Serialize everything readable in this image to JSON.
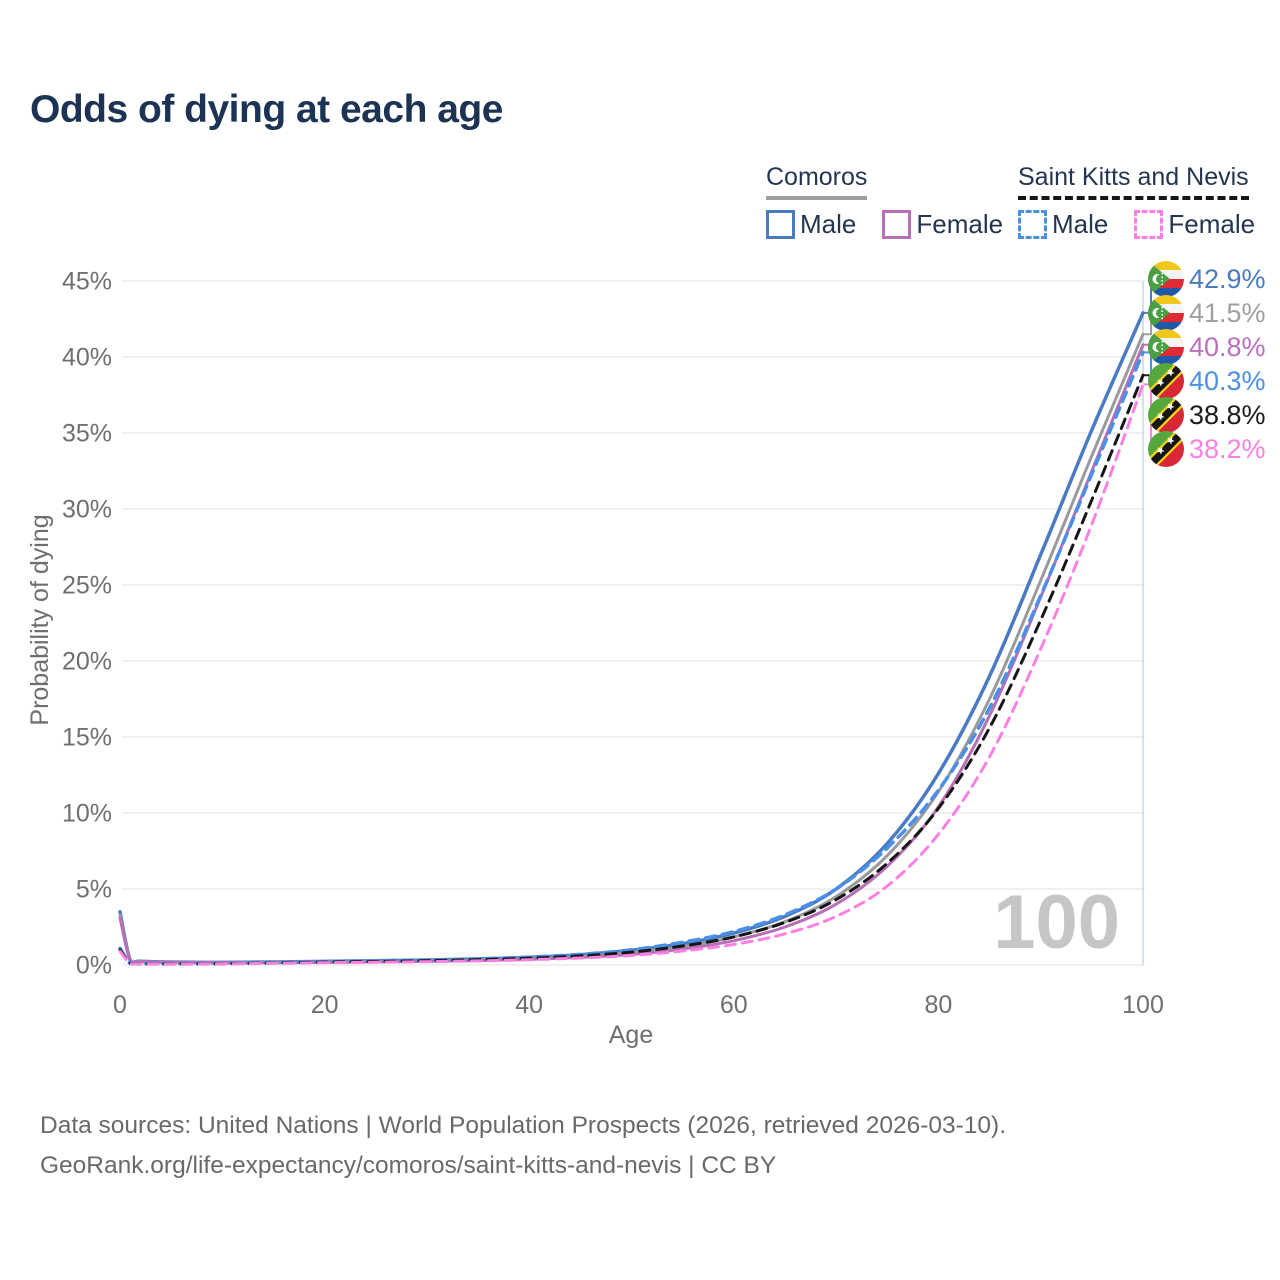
{
  "title": "Odds of dying at each age",
  "legend": {
    "groups": [
      {
        "name": "Comoros",
        "underline_color": "#9e9e9e",
        "line_style": "solid",
        "items": [
          {
            "label": "Male",
            "color": "#4a7ac2",
            "dashed": false
          },
          {
            "label": "Female",
            "color": "#b76fb5",
            "dashed": false
          }
        ]
      },
      {
        "name": "Saint Kitts and Nevis",
        "underline_color": "#161616",
        "line_style": "dashed",
        "items": [
          {
            "label": "Male",
            "color": "#4a90e8",
            "dashed": true
          },
          {
            "label": "Female",
            "color": "#fb80e2",
            "dashed": true
          }
        ]
      }
    ]
  },
  "chart_data": {
    "type": "line",
    "title": "Odds of dying at each age",
    "xlabel": "Age",
    "ylabel": "Probability of dying",
    "xlim": [
      0,
      100
    ],
    "ylim": [
      0,
      45
    ],
    "x_ticks": [
      0,
      20,
      40,
      60,
      80,
      100
    ],
    "y_ticks_percent": [
      0,
      5,
      10,
      15,
      20,
      25,
      30,
      35,
      40,
      45
    ],
    "grid": true,
    "legend_position": "top-right",
    "hover_age_indicator": "100",
    "series": [
      {
        "name": "Comoros Male",
        "country": "Comoros",
        "sex": "Male",
        "color": "#4a7ac2",
        "dashed": false,
        "width": 3.5,
        "end_label": "42.9%",
        "points": [
          [
            0,
            3.5
          ],
          [
            1,
            0.32
          ],
          [
            2,
            0.25
          ],
          [
            5,
            0.2
          ],
          [
            10,
            0.17
          ],
          [
            15,
            0.2
          ],
          [
            20,
            0.24
          ],
          [
            25,
            0.28
          ],
          [
            30,
            0.33
          ],
          [
            35,
            0.4
          ],
          [
            40,
            0.5
          ],
          [
            45,
            0.68
          ],
          [
            50,
            0.97
          ],
          [
            55,
            1.4
          ],
          [
            60,
            2.1
          ],
          [
            65,
            3.2
          ],
          [
            70,
            5.0
          ],
          [
            75,
            8.0
          ],
          [
            80,
            12.6
          ],
          [
            85,
            19.0
          ],
          [
            90,
            27.0
          ],
          [
            95,
            35.2
          ],
          [
            100,
            42.9
          ]
        ]
      },
      {
        "name": "Comoros Both sexes",
        "country": "Comoros",
        "sex": "Both",
        "color": "#9a9a9a",
        "dashed": false,
        "width": 3,
        "end_label": "41.5%",
        "points": [
          [
            0,
            3.3
          ],
          [
            1,
            0.3
          ],
          [
            2,
            0.23
          ],
          [
            5,
            0.18
          ],
          [
            10,
            0.15
          ],
          [
            15,
            0.17
          ],
          [
            20,
            0.2
          ],
          [
            25,
            0.24
          ],
          [
            30,
            0.28
          ],
          [
            35,
            0.34
          ],
          [
            40,
            0.43
          ],
          [
            45,
            0.58
          ],
          [
            50,
            0.83
          ],
          [
            55,
            1.2
          ],
          [
            60,
            1.85
          ],
          [
            65,
            2.85
          ],
          [
            70,
            4.5
          ],
          [
            75,
            7.2
          ],
          [
            80,
            11.4
          ],
          [
            85,
            17.5
          ],
          [
            90,
            25.3
          ],
          [
            95,
            33.5
          ],
          [
            100,
            41.5
          ]
        ]
      },
      {
        "name": "Comoros Female",
        "country": "Comoros",
        "sex": "Female",
        "color": "#b76fb5",
        "dashed": false,
        "width": 3,
        "end_label": "40.8%",
        "points": [
          [
            0,
            3.1
          ],
          [
            1,
            0.28
          ],
          [
            2,
            0.21
          ],
          [
            5,
            0.17
          ],
          [
            10,
            0.14
          ],
          [
            15,
            0.15
          ],
          [
            20,
            0.17
          ],
          [
            25,
            0.2
          ],
          [
            30,
            0.24
          ],
          [
            35,
            0.29
          ],
          [
            40,
            0.37
          ],
          [
            45,
            0.5
          ],
          [
            50,
            0.7
          ],
          [
            55,
            1.05
          ],
          [
            60,
            1.6
          ],
          [
            65,
            2.5
          ],
          [
            70,
            4.0
          ],
          [
            75,
            6.5
          ],
          [
            80,
            10.4
          ],
          [
            85,
            16.4
          ],
          [
            90,
            24.2
          ],
          [
            95,
            32.5
          ],
          [
            100,
            40.8
          ]
        ]
      },
      {
        "name": "Saint Kitts and Nevis Male",
        "country": "Saint Kitts and Nevis",
        "sex": "Male",
        "color": "#4a90e8",
        "dashed": true,
        "width": 3.5,
        "end_label": "40.3%",
        "points": [
          [
            0,
            1.1
          ],
          [
            1,
            0.12
          ],
          [
            2,
            0.09
          ],
          [
            5,
            0.08
          ],
          [
            10,
            0.1
          ],
          [
            15,
            0.15
          ],
          [
            20,
            0.22
          ],
          [
            25,
            0.27
          ],
          [
            30,
            0.32
          ],
          [
            35,
            0.4
          ],
          [
            40,
            0.52
          ],
          [
            45,
            0.7
          ],
          [
            50,
            1.0
          ],
          [
            55,
            1.5
          ],
          [
            60,
            2.2
          ],
          [
            65,
            3.3
          ],
          [
            70,
            5.0
          ],
          [
            75,
            7.7
          ],
          [
            80,
            11.5
          ],
          [
            85,
            16.9
          ],
          [
            90,
            24.3
          ],
          [
            95,
            32.3
          ],
          [
            100,
            40.3
          ]
        ]
      },
      {
        "name": "Saint Kitts and Nevis Both sexes",
        "country": "Saint Kitts and Nevis",
        "sex": "Both",
        "color": "#161616",
        "dashed": true,
        "width": 3,
        "end_label": "38.8%",
        "points": [
          [
            0,
            1.0
          ],
          [
            1,
            0.11
          ],
          [
            2,
            0.08
          ],
          [
            5,
            0.07
          ],
          [
            10,
            0.09
          ],
          [
            15,
            0.13
          ],
          [
            20,
            0.19
          ],
          [
            25,
            0.23
          ],
          [
            30,
            0.28
          ],
          [
            35,
            0.35
          ],
          [
            40,
            0.45
          ],
          [
            45,
            0.6
          ],
          [
            50,
            0.85
          ],
          [
            55,
            1.25
          ],
          [
            60,
            1.85
          ],
          [
            65,
            2.8
          ],
          [
            70,
            4.3
          ],
          [
            75,
            6.7
          ],
          [
            80,
            10.3
          ],
          [
            85,
            15.6
          ],
          [
            90,
            22.7
          ],
          [
            95,
            30.6
          ],
          [
            100,
            38.8
          ]
        ]
      },
      {
        "name": "Saint Kitts and Nevis Female",
        "country": "Saint Kitts and Nevis",
        "sex": "Female",
        "color": "#fb80e2",
        "dashed": true,
        "width": 3,
        "end_label": "38.2%",
        "points": [
          [
            0,
            0.9
          ],
          [
            1,
            0.1
          ],
          [
            2,
            0.07
          ],
          [
            5,
            0.06
          ],
          [
            10,
            0.08
          ],
          [
            15,
            0.11
          ],
          [
            20,
            0.15
          ],
          [
            25,
            0.18
          ],
          [
            30,
            0.22
          ],
          [
            35,
            0.27
          ],
          [
            40,
            0.35
          ],
          [
            45,
            0.46
          ],
          [
            50,
            0.63
          ],
          [
            55,
            0.92
          ],
          [
            60,
            1.35
          ],
          [
            65,
            2.05
          ],
          [
            70,
            3.2
          ],
          [
            75,
            5.2
          ],
          [
            80,
            8.6
          ],
          [
            85,
            13.7
          ],
          [
            90,
            20.8
          ],
          [
            95,
            29.0
          ],
          [
            100,
            38.2
          ]
        ]
      }
    ],
    "end_labels": [
      {
        "value": "42.9%",
        "numeric": 42.9,
        "color": "#4a7ac2",
        "flag": "comoros"
      },
      {
        "value": "41.5%",
        "numeric": 41.5,
        "color": "#9f9f9f",
        "flag": "comoros"
      },
      {
        "value": "40.8%",
        "numeric": 40.8,
        "color": "#bb6fbd",
        "flag": "comoros"
      },
      {
        "value": "40.3%",
        "numeric": 40.3,
        "color": "#4a90e8",
        "flag": "skn"
      },
      {
        "value": "38.8%",
        "numeric": 38.8,
        "color": "#1b1b1b",
        "flag": "skn"
      },
      {
        "value": "38.2%",
        "numeric": 38.2,
        "color": "#fb80e2",
        "flag": "skn"
      }
    ]
  },
  "footer": {
    "line1": "Data sources: United Nations | World Population Prospects (2026, retrieved 2026-03-10).",
    "line2": "GeoRank.org/life-expectancy/comoros/saint-kitts-and-nevis | CC BY"
  }
}
